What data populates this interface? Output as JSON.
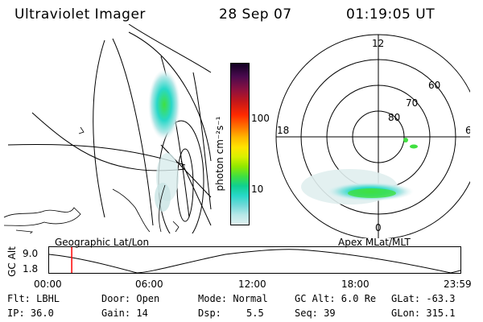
{
  "header": {
    "instrument": "Ultraviolet Imager",
    "date": "28 Sep 07",
    "time": "01:19:05 UT"
  },
  "geo_panel": {
    "caption": "Geographic Lat/Lon"
  },
  "polar_panel": {
    "caption": "Apex MLat/MLT",
    "mlt_labels": {
      "top": "12",
      "left": "18",
      "right": "6",
      "bottom": "0"
    },
    "lat_labels": [
      "60",
      "70",
      "80"
    ]
  },
  "colorbar": {
    "unit_label": "photon cm⁻²s⁻¹",
    "ticks": [
      "100",
      "10"
    ],
    "colors": [
      "#110022",
      "#4a0a4e",
      "#8a1040",
      "#c81818",
      "#ff2a00",
      "#ff7a00",
      "#ffb800",
      "#ffe400",
      "#d8f000",
      "#90e800",
      "#40e040",
      "#10d090",
      "#28d8c8",
      "#70d8d8",
      "#b8e8e8",
      "#e0f0f0"
    ]
  },
  "altitude_plot": {
    "ylabel": "GC Alt",
    "yticks": [
      "9.0",
      "1.8"
    ],
    "xticks": [
      "00:00",
      "06:00",
      "12:00",
      "18:00",
      "23:59"
    ],
    "current_time_hours": 1.32,
    "marker_color": "#ff0000"
  },
  "info": {
    "filter": "Flt: LBHL",
    "ip": "IP: 36.0",
    "door": "Door: Open",
    "gain": "Gain: 14",
    "mode": "Mode: Normal",
    "dsp_label": "Dsp:",
    "dsp_value": "5.5",
    "gc_alt": "GC Alt: 6.0 Re",
    "seq": "Seq: 39",
    "glat": "GLat: -63.3",
    "glon": "GLon: 315.1"
  }
}
